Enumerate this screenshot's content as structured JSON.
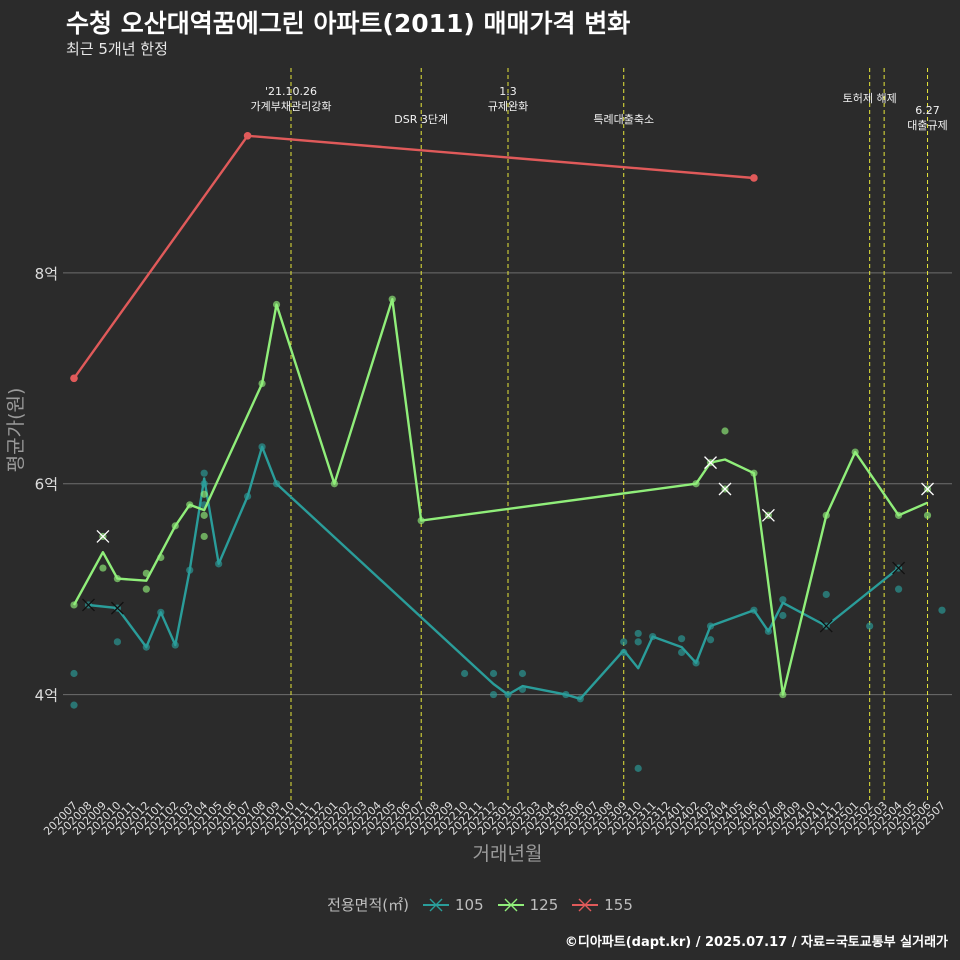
{
  "title": "수청 오산대역꿈에그린 아파트(2011) 매매가격 변화",
  "subtitle": "최근 5개년 한정",
  "footer": "©디아파트(dapt.kr) / 2025.07.17 / 자료=국토교통부 실거래가",
  "chart_data": {
    "type": "line",
    "xlabel": "거래년월",
    "ylabel": "평균가(원)",
    "categories": [
      "202007",
      "202008",
      "202009",
      "202010",
      "202011",
      "202012",
      "202101",
      "202102",
      "202103",
      "202104",
      "202105",
      "202106",
      "202107",
      "202108",
      "202109",
      "202110",
      "202111",
      "202112",
      "202201",
      "202202",
      "202203",
      "202204",
      "202205",
      "202206",
      "202207",
      "202208",
      "202209",
      "202210",
      "202211",
      "202212",
      "202301",
      "202302",
      "202303",
      "202304",
      "202305",
      "202306",
      "202307",
      "202308",
      "202309",
      "202310",
      "202311",
      "202312",
      "202401",
      "202402",
      "202403",
      "202404",
      "202405",
      "202406",
      "202407",
      "202408",
      "202409",
      "202410",
      "202411",
      "202412",
      "202501",
      "202502",
      "202503",
      "202504",
      "202505",
      "202506",
      "202507"
    ],
    "ylim": [
      3.0,
      10.0
    ],
    "yticks": [
      {
        "value": 4,
        "label": "4억"
      },
      {
        "value": 6,
        "label": "6억"
      },
      {
        "value": 8,
        "label": "8억"
      }
    ],
    "grid": true,
    "legend_title": "전용면적(㎡)",
    "legend_position": "bottom",
    "series": [
      {
        "name": "105",
        "color": "#2a9d9a",
        "line": [
          [
            "202008",
            4.85
          ],
          [
            "202010",
            4.82
          ],
          [
            "202012",
            4.45
          ],
          [
            "202101",
            4.78
          ],
          [
            "202102",
            4.47
          ],
          [
            "202103",
            5.18
          ],
          [
            "202104",
            6.05
          ],
          [
            "202105",
            5.24
          ],
          [
            "202107",
            5.88
          ],
          [
            "202108",
            6.35
          ],
          [
            "202109",
            6.0
          ],
          [
            "202212",
            4.1
          ],
          [
            "202301",
            4.0
          ],
          [
            "202302",
            4.08
          ],
          [
            "202305",
            4.0
          ],
          [
            "202306",
            3.96
          ],
          [
            "202309",
            4.42
          ],
          [
            "202310",
            4.25
          ],
          [
            "202311",
            4.55
          ],
          [
            "202401",
            4.45
          ],
          [
            "202402",
            4.3
          ],
          [
            "202403",
            4.65
          ],
          [
            "202406",
            4.8
          ],
          [
            "202407",
            4.6
          ],
          [
            "202408",
            4.87
          ],
          [
            "202411",
            4.65
          ],
          [
            "202504",
            5.2
          ]
        ],
        "points": [
          [
            "202007",
            4.2
          ],
          [
            "202007",
            3.9
          ],
          [
            "202008",
            4.85
          ],
          [
            "202010",
            4.82
          ],
          [
            "202010",
            4.5
          ],
          [
            "202012",
            4.45
          ],
          [
            "202101",
            4.78
          ],
          [
            "202102",
            4.47
          ],
          [
            "202103",
            5.18
          ],
          [
            "202104",
            6.1
          ],
          [
            "202104",
            6.0
          ],
          [
            "202104",
            5.8
          ],
          [
            "202105",
            5.24
          ],
          [
            "202107",
            5.88
          ],
          [
            "202108",
            6.35
          ],
          [
            "202109",
            6.0
          ],
          [
            "202210",
            4.2
          ],
          [
            "202212",
            4.2
          ],
          [
            "202212",
            4.0
          ],
          [
            "202301",
            4.0
          ],
          [
            "202302",
            4.2
          ],
          [
            "202302",
            4.05
          ],
          [
            "202305",
            4.0
          ],
          [
            "202306",
            3.96
          ],
          [
            "202309",
            4.5
          ],
          [
            "202309",
            4.4
          ],
          [
            "202310",
            4.58
          ],
          [
            "202310",
            4.5
          ],
          [
            "202310",
            3.3
          ],
          [
            "202311",
            4.55
          ],
          [
            "202401",
            4.53
          ],
          [
            "202401",
            4.4
          ],
          [
            "202402",
            4.3
          ],
          [
            "202403",
            4.65
          ],
          [
            "202403",
            4.52
          ],
          [
            "202406",
            4.8
          ],
          [
            "202407",
            4.6
          ],
          [
            "202408",
            4.9
          ],
          [
            "202408",
            4.75
          ],
          [
            "202411",
            4.95
          ],
          [
            "202411",
            4.65
          ],
          [
            "202502",
            4.65
          ],
          [
            "202504",
            5.2
          ],
          [
            "202504",
            5.0
          ],
          [
            "202507",
            4.8
          ]
        ],
        "cancelled": [
          [
            "202008",
            4.85
          ],
          [
            "202010",
            4.82
          ],
          [
            "202411",
            4.65
          ],
          [
            "202504",
            5.2
          ]
        ]
      },
      {
        "name": "125",
        "color": "#90ee7a",
        "line": [
          [
            "202007",
            4.85
          ],
          [
            "202009",
            5.35
          ],
          [
            "202010",
            5.1
          ],
          [
            "202012",
            5.08
          ],
          [
            "202102",
            5.6
          ],
          [
            "202103",
            5.8
          ],
          [
            "202104",
            5.75
          ],
          [
            "202108",
            6.95
          ],
          [
            "202109",
            7.7
          ],
          [
            "202201",
            6.0
          ],
          [
            "202205",
            7.75
          ],
          [
            "202207",
            5.65
          ],
          [
            "202402",
            6.0
          ],
          [
            "202403",
            6.2
          ],
          [
            "202404",
            6.23
          ],
          [
            "202406",
            6.1
          ],
          [
            "202408",
            4.0
          ],
          [
            "202411",
            5.7
          ],
          [
            "202501",
            6.3
          ],
          [
            "202504",
            5.7
          ],
          [
            "202506",
            5.82
          ]
        ],
        "points": [
          [
            "202007",
            4.85
          ],
          [
            "202009",
            5.5
          ],
          [
            "202009",
            5.2
          ],
          [
            "202010",
            5.1
          ],
          [
            "202012",
            5.15
          ],
          [
            "202012",
            5.0
          ],
          [
            "202101",
            5.3
          ],
          [
            "202102",
            5.6
          ],
          [
            "202103",
            5.8
          ],
          [
            "202104",
            5.7
          ],
          [
            "202104",
            5.9
          ],
          [
            "202104",
            5.5
          ],
          [
            "202108",
            6.95
          ],
          [
            "202109",
            7.7
          ],
          [
            "202201",
            6.0
          ],
          [
            "202205",
            7.75
          ],
          [
            "202207",
            5.65
          ],
          [
            "202402",
            6.0
          ],
          [
            "202403",
            6.2
          ],
          [
            "202404",
            5.95
          ],
          [
            "202404",
            6.5
          ],
          [
            "202406",
            6.1
          ],
          [
            "202407",
            5.7
          ],
          [
            "202408",
            4.0
          ],
          [
            "202411",
            5.7
          ],
          [
            "202501",
            6.3
          ],
          [
            "202504",
            5.7
          ],
          [
            "202506",
            5.95
          ],
          [
            "202506",
            5.7
          ]
        ],
        "cancelled": [
          [
            "202009",
            5.5
          ],
          [
            "202403",
            6.2
          ],
          [
            "202404",
            5.95
          ],
          [
            "202407",
            5.7
          ],
          [
            "202506",
            5.95
          ]
        ]
      },
      {
        "name": "155",
        "color": "#e05a5a",
        "line": [
          [
            "202007",
            7.0
          ],
          [
            "202107",
            9.3
          ],
          [
            "202406",
            8.9
          ]
        ],
        "points": [
          [
            "202007",
            7.0
          ],
          [
            "202107",
            9.3
          ],
          [
            "202406",
            8.9
          ]
        ],
        "cancelled": []
      }
    ],
    "events": [
      {
        "x": "202110",
        "label": "'21.10.26\n가계부채관리강화",
        "row": 0
      },
      {
        "x": "202207",
        "label": "DSR 3단계",
        "row": 1
      },
      {
        "x": "202301",
        "label": "1.3\n규제완화",
        "row": 0
      },
      {
        "x": "202309",
        "label": "특례대출축소",
        "row": 1
      },
      {
        "x": "202502",
        "label": "토허제 해제",
        "row": 0
      },
      {
        "x": "202503",
        "label": "",
        "row": 0
      },
      {
        "x": "202506",
        "label": "6.27\n대출규제",
        "row": 1
      }
    ]
  }
}
